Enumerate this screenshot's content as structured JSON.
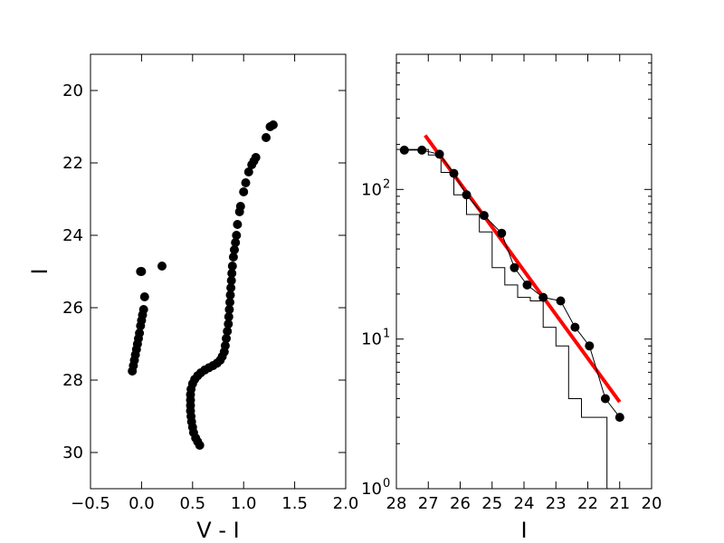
{
  "chart_data": [
    {
      "type": "scatter",
      "xlabel": "V - I",
      "ylabel": "I",
      "xlim": [
        -0.5,
        2.0
      ],
      "ylim": [
        31,
        19
      ],
      "y_inverted": true,
      "xticks": [
        -0.5,
        0.0,
        0.5,
        1.0,
        1.5,
        2.0
      ],
      "xtick_labels": [
        "−0.5",
        "0.0",
        "0.5",
        "1.0",
        "1.5",
        "2.0"
      ],
      "yticks": [
        20,
        22,
        24,
        26,
        28,
        30
      ],
      "ytick_labels": [
        "20",
        "22",
        "24",
        "26",
        "28",
        "30"
      ],
      "marker_color": "#000000",
      "series": [
        {
          "points": [
            [
              -0.09,
              27.75
            ],
            [
              -0.08,
              27.6
            ],
            [
              -0.07,
              27.45
            ],
            [
              -0.06,
              27.3
            ],
            [
              -0.05,
              27.15
            ],
            [
              -0.04,
              27.0
            ],
            [
              -0.03,
              26.85
            ],
            [
              -0.02,
              26.7
            ],
            [
              -0.01,
              26.5
            ],
            [
              0.0,
              26.35
            ],
            [
              0.01,
              26.2
            ],
            [
              0.02,
              26.05
            ],
            [
              0.03,
              25.7
            ],
            [
              0.0,
              25.0
            ],
            [
              -0.01,
              25.0
            ],
            [
              0.2,
              24.85
            ]
          ]
        },
        {
          "points": [
            [
              0.57,
              29.8
            ],
            [
              0.55,
              29.7
            ],
            [
              0.53,
              29.6
            ],
            [
              0.51,
              29.45
            ],
            [
              0.5,
              29.3
            ],
            [
              0.49,
              29.15
            ],
            [
              0.485,
              29.0
            ],
            [
              0.48,
              28.85
            ],
            [
              0.48,
              28.7
            ],
            [
              0.48,
              28.55
            ],
            [
              0.48,
              28.4
            ],
            [
              0.485,
              28.25
            ],
            [
              0.5,
              28.1
            ],
            [
              0.52,
              27.98
            ],
            [
              0.55,
              27.88
            ],
            [
              0.58,
              27.8
            ],
            [
              0.62,
              27.72
            ],
            [
              0.66,
              27.66
            ],
            [
              0.7,
              27.6
            ],
            [
              0.74,
              27.53
            ],
            [
              0.77,
              27.45
            ],
            [
              0.79,
              27.35
            ],
            [
              0.81,
              27.22
            ],
            [
              0.82,
              27.05
            ],
            [
              0.83,
              26.85
            ],
            [
              0.84,
              26.65
            ],
            [
              0.85,
              26.45
            ],
            [
              0.855,
              26.25
            ],
            [
              0.86,
              26.05
            ],
            [
              0.865,
              25.85
            ],
            [
              0.87,
              25.65
            ],
            [
              0.875,
              25.45
            ],
            [
              0.88,
              25.25
            ],
            [
              0.885,
              25.05
            ],
            [
              0.89,
              24.85
            ],
            [
              0.9,
              24.6
            ],
            [
              0.91,
              24.4
            ],
            [
              0.92,
              24.2
            ],
            [
              0.93,
              24.0
            ],
            [
              0.94,
              23.7
            ],
            [
              0.96,
              23.35
            ],
            [
              0.97,
              23.2
            ],
            [
              1.0,
              22.8
            ],
            [
              1.02,
              22.55
            ],
            [
              1.05,
              22.25
            ],
            [
              1.08,
              22.05
            ],
            [
              1.1,
              21.95
            ],
            [
              1.12,
              21.85
            ],
            [
              1.22,
              21.3
            ],
            [
              1.26,
              21.0
            ],
            [
              1.29,
              20.95
            ]
          ]
        }
      ]
    },
    {
      "type": "line",
      "xlabel": "I",
      "ylabel": "",
      "xlim": [
        28,
        20
      ],
      "x_inverted": true,
      "ylim": [
        1,
        800
      ],
      "y_scale": "log",
      "xticks": [
        28,
        27,
        26,
        25,
        24,
        23,
        22,
        21,
        20
      ],
      "xtick_labels": [
        "28",
        "27",
        "26",
        "25",
        "24",
        "23",
        "22",
        "21",
        "20"
      ],
      "yticks": [
        1,
        10,
        100
      ],
      "ytick_base_labels": [
        "10",
        "10",
        "10"
      ],
      "ytick_exponent_labels": [
        "0",
        "1",
        "2"
      ],
      "histogram": {
        "bin_edges": [
          28.0,
          27.5,
          27.0,
          26.6,
          26.2,
          25.8,
          25.4,
          25.0,
          24.6,
          24.2,
          23.8,
          23.4,
          23.0,
          22.6,
          22.2,
          21.8,
          21.4,
          21.0
        ],
        "counts": [
          185,
          185,
          170,
          130,
          92,
          68,
          52,
          30,
          23,
          19,
          18,
          12,
          9,
          4,
          3,
          3,
          1
        ],
        "color": "#000000"
      },
      "points": {
        "x": [
          27.75,
          27.2,
          26.65,
          26.2,
          25.8,
          25.25,
          24.7,
          24.3,
          23.9,
          23.4,
          22.85,
          22.4,
          21.95,
          21.45,
          21.0
        ],
        "y": [
          183,
          183,
          172,
          128,
          92,
          67,
          51,
          30,
          23,
          19,
          18,
          12,
          9,
          4,
          3
        ],
        "color": "#000000"
      },
      "fit_line": {
        "x": [
          27.1,
          21.0
        ],
        "y": [
          230,
          3.8
        ],
        "color": "#ff0000"
      }
    }
  ]
}
